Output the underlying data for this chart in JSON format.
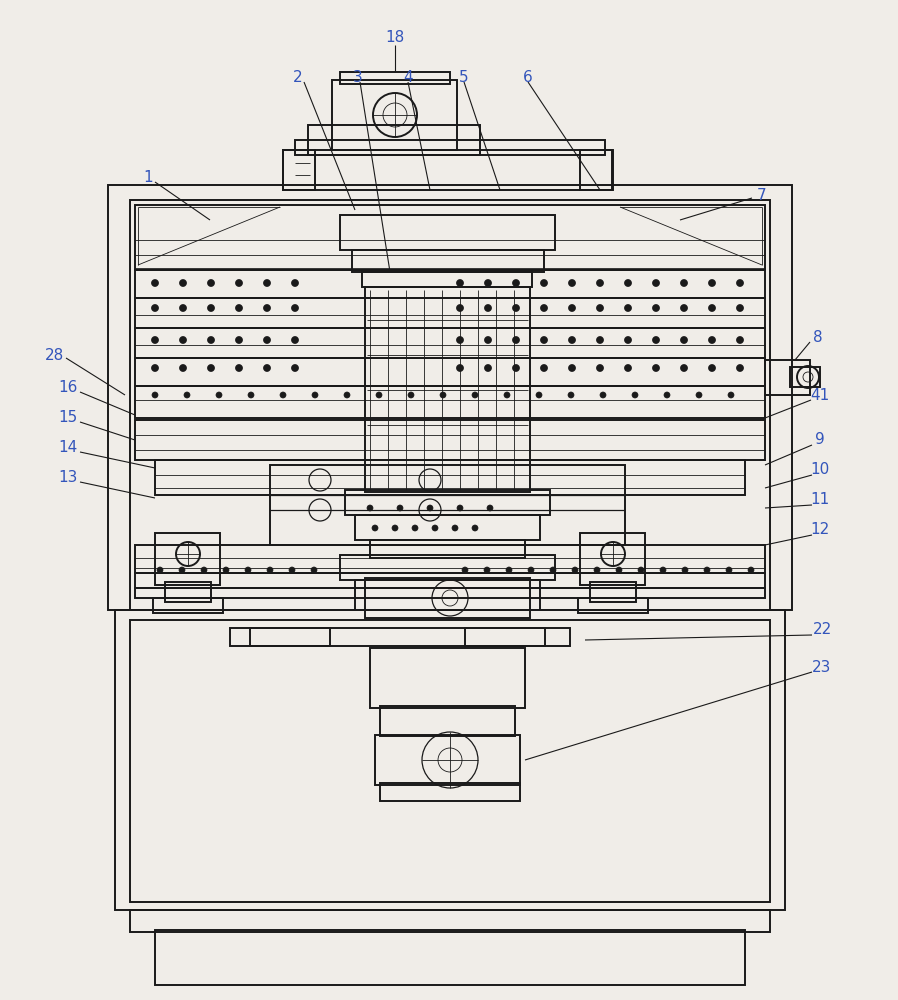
{
  "bg_color": "#f0ede8",
  "line_color": "#1a1a1a",
  "label_color": "#3355bb",
  "label_fontsize": 11,
  "lw_main": 1.4,
  "lw_med": 0.9,
  "lw_thin": 0.6
}
